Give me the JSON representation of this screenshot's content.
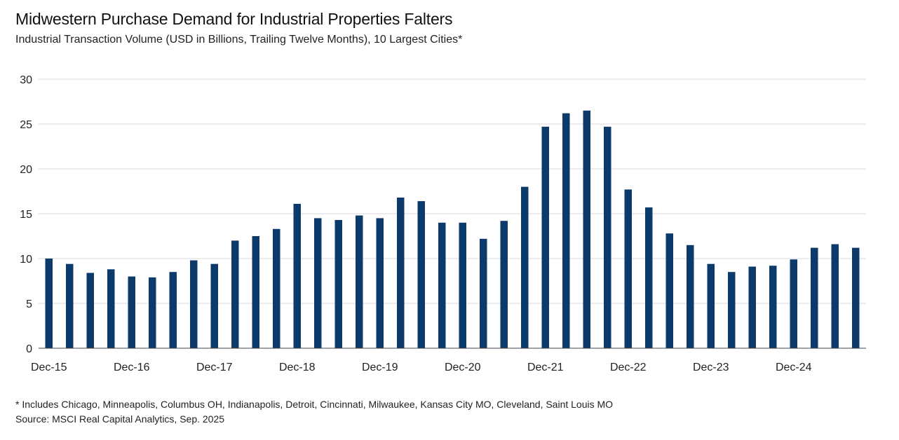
{
  "title": "Midwestern Purchase Demand for Industrial Properties Falters",
  "subtitle": "Industrial Transaction Volume (USD in Billions, Trailing Twelve Months), 10 Largest Cities*",
  "footnote": "* Includes Chicago, Minneapolis, Columbus OH, Indianapolis, Detroit, Cincinnati, Milwaukee, Kansas City MO, Cleveland, Saint Louis MO",
  "source": "Source: MSCI Real Capital Analytics, Sep. 2025",
  "colors": {
    "bar": "#0b3a6b",
    "grid": "#d9d9d9",
    "axis": "#444444"
  },
  "chart_data": {
    "type": "bar",
    "title": "Midwestern Purchase Demand for Industrial Properties Falters",
    "xlabel": "",
    "ylabel": "Industrial Transaction Volume (USD in Billions, Trailing Twelve Months)",
    "ylim": [
      0,
      30
    ],
    "yticks": [
      0,
      5,
      10,
      15,
      20,
      25,
      30
    ],
    "grid": true,
    "categories": [
      "Dec-15",
      "Mar-16",
      "Jun-16",
      "Sep-16",
      "Dec-16",
      "Mar-17",
      "Jun-17",
      "Sep-17",
      "Dec-17",
      "Mar-18",
      "Jun-18",
      "Sep-18",
      "Dec-18",
      "Mar-19",
      "Jun-19",
      "Sep-19",
      "Dec-19",
      "Mar-20",
      "Jun-20",
      "Sep-20",
      "Dec-20",
      "Mar-21",
      "Jun-21",
      "Sep-21",
      "Dec-21",
      "Mar-22",
      "Jun-22",
      "Sep-22",
      "Dec-22",
      "Mar-23",
      "Jun-23",
      "Sep-23",
      "Dec-23",
      "Mar-24",
      "Jun-24",
      "Sep-24",
      "Dec-24",
      "Mar-25",
      "Jun-25",
      "Sep-25"
    ],
    "xtick_labels": [
      "Dec-15",
      "Dec-16",
      "Dec-17",
      "Dec-18",
      "Dec-19",
      "Dec-20",
      "Dec-21",
      "Dec-22",
      "Dec-23",
      "Dec-24"
    ],
    "values": [
      10.0,
      9.4,
      8.4,
      8.8,
      8.0,
      7.9,
      8.5,
      9.8,
      9.4,
      12.0,
      12.5,
      13.3,
      16.1,
      14.5,
      14.3,
      14.8,
      14.5,
      16.8,
      16.4,
      14.0,
      14.0,
      12.2,
      14.2,
      18.0,
      24.7,
      26.2,
      26.5,
      24.7,
      17.7,
      15.7,
      12.8,
      11.5,
      9.4,
      8.5,
      9.1,
      9.2,
      9.9,
      11.2,
      11.6,
      11.2
    ]
  }
}
